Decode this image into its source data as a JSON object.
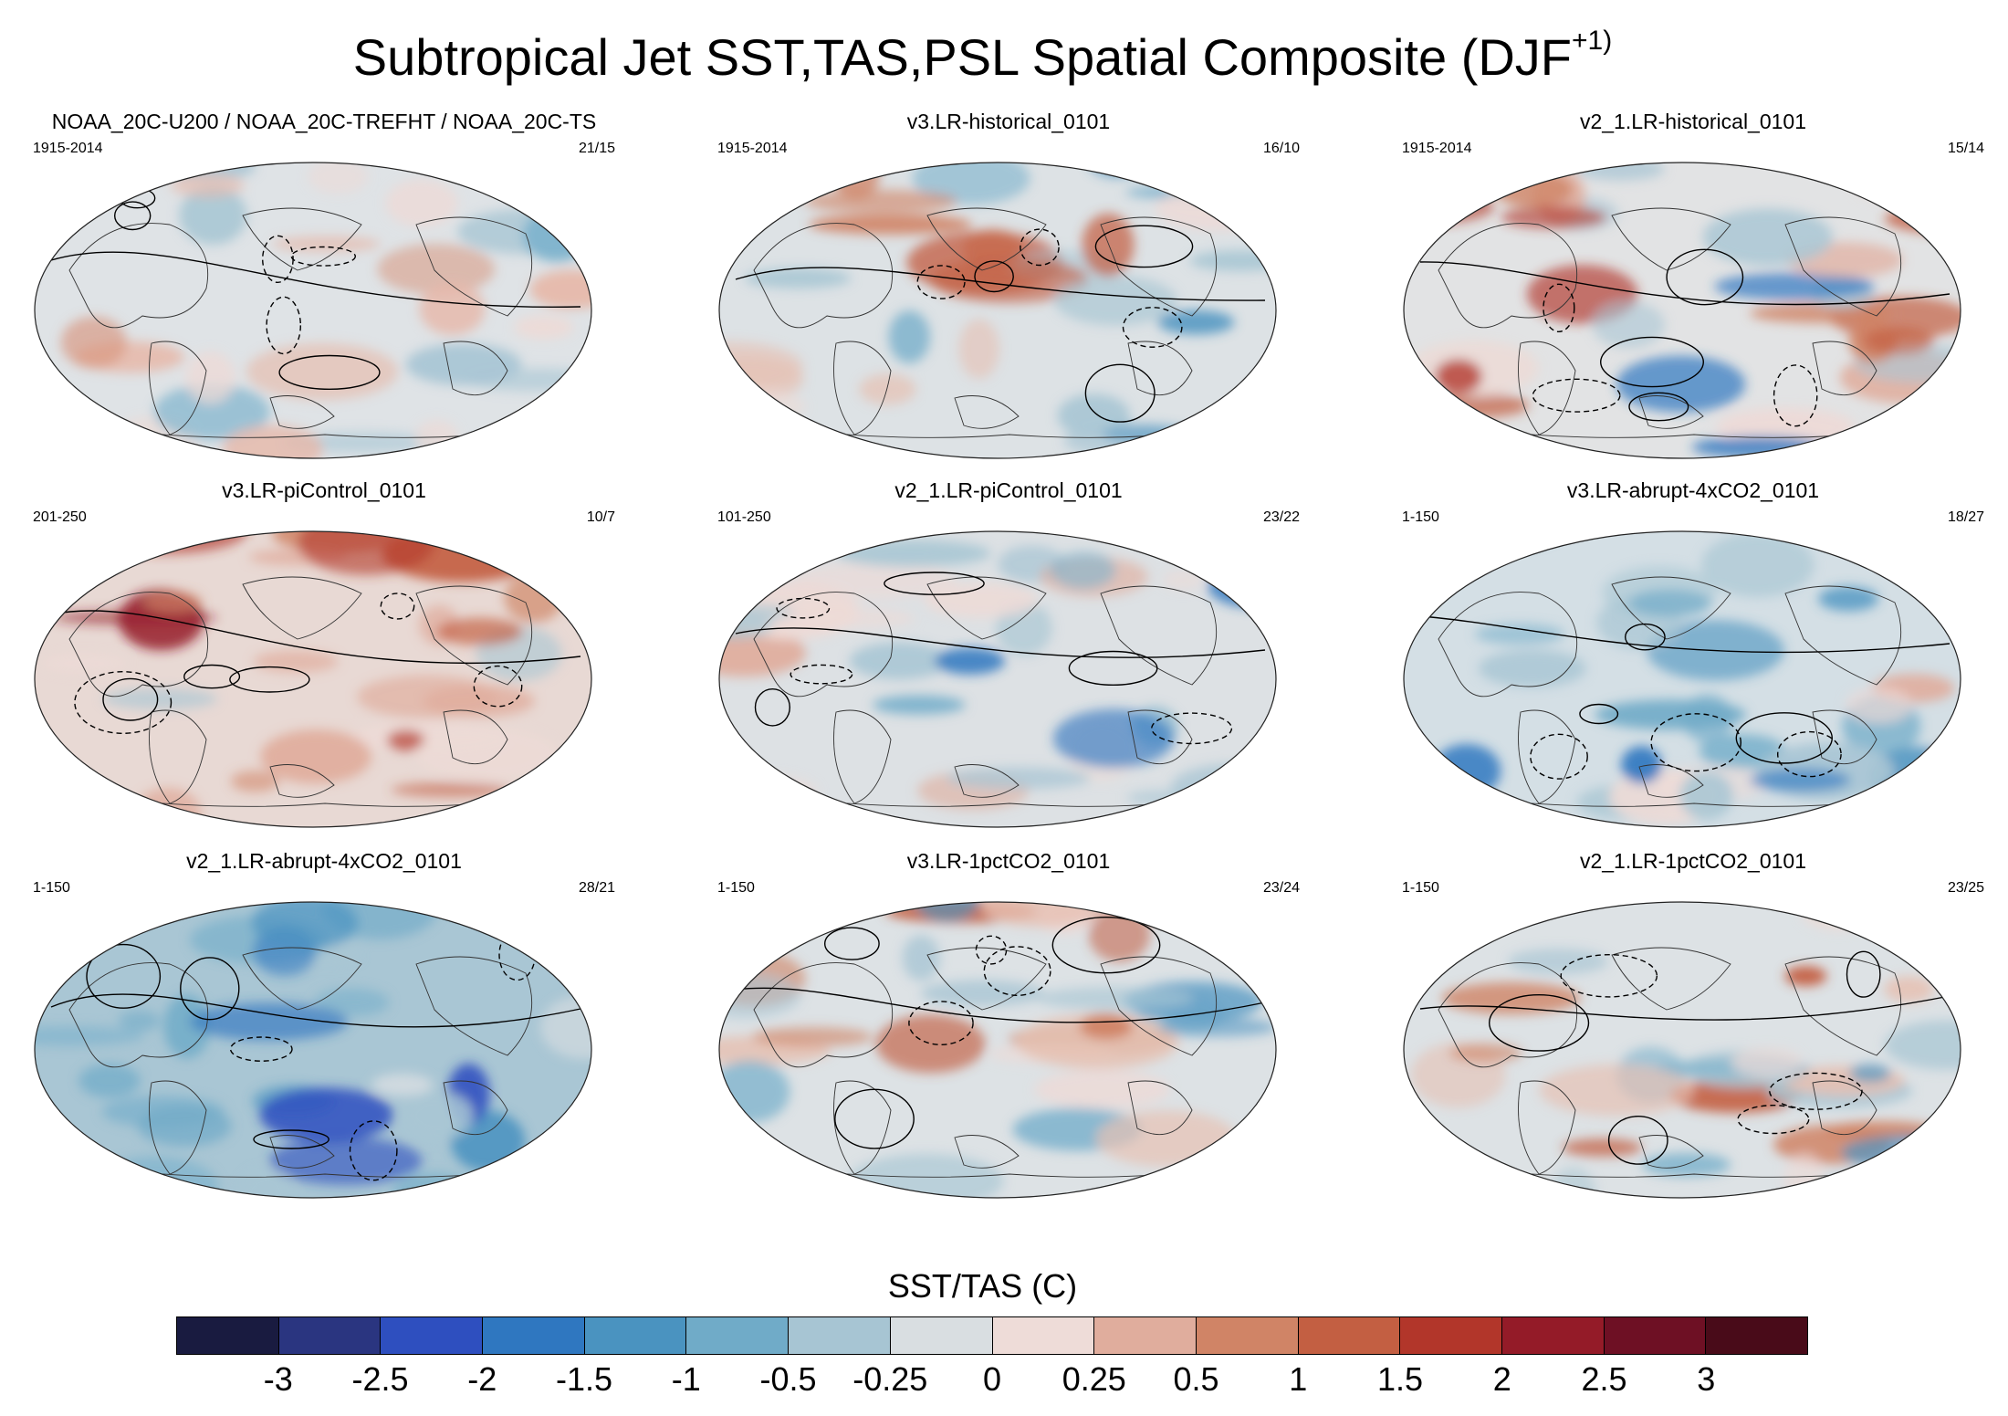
{
  "figure": {
    "title": "Subtropical Jet SST,TAS,PSL Spatial Composite (DJF",
    "title_superscript": "+1)"
  },
  "panels": [
    {
      "title": "NOAA_20C-U200 / NOAA_20C-TREFHT / NOAA_20C-TS",
      "years": "1915-2014",
      "count": "21/15",
      "tone": "mixed-warm"
    },
    {
      "title": "v3.LR-historical_0101",
      "years": "1915-2014",
      "count": "16/10",
      "tone": "mixed"
    },
    {
      "title": "v2_1.LR-historical_0101",
      "years": "1915-2014",
      "count": "15/14",
      "tone": "warm-north"
    },
    {
      "title": "v3.LR-piControl_0101",
      "years": "201-250",
      "count": "10/7",
      "tone": "warm"
    },
    {
      "title": "v2_1.LR-piControl_0101",
      "years": "101-250",
      "count": "23/22",
      "tone": "neutral"
    },
    {
      "title": "v3.LR-abrupt-4xCO2_0101",
      "years": "1-150",
      "count": "18/27",
      "tone": "cool"
    },
    {
      "title": "v2_1.LR-abrupt-4xCO2_0101",
      "years": "1-150",
      "count": "28/21",
      "tone": "cold"
    },
    {
      "title": "v3.LR-1pctCO2_0101",
      "years": "1-150",
      "count": "23/24",
      "tone": "mixed"
    },
    {
      "title": "v2_1.LR-1pctCO2_0101",
      "years": "1-150",
      "count": "23/25",
      "tone": "mixed"
    }
  ],
  "colorbar": {
    "label": "SST/TAS (C)",
    "colors": [
      "#191b40",
      "#2a3580",
      "#2e4fbf",
      "#2f77c0",
      "#4a93c0",
      "#70abc8",
      "#a7c5d3",
      "#d9dee1",
      "#eedcd8",
      "#e0ad9d",
      "#d08466",
      "#c35f42",
      "#b2362a",
      "#941b28",
      "#6e1024",
      "#490b19"
    ],
    "ticks": [
      "-3",
      "-2.5",
      "-2",
      "-1.5",
      "-1",
      "-0.5",
      "-0.25",
      "0",
      "0.25",
      "0.5",
      "1",
      "1.5",
      "2",
      "2.5",
      "3"
    ]
  }
}
